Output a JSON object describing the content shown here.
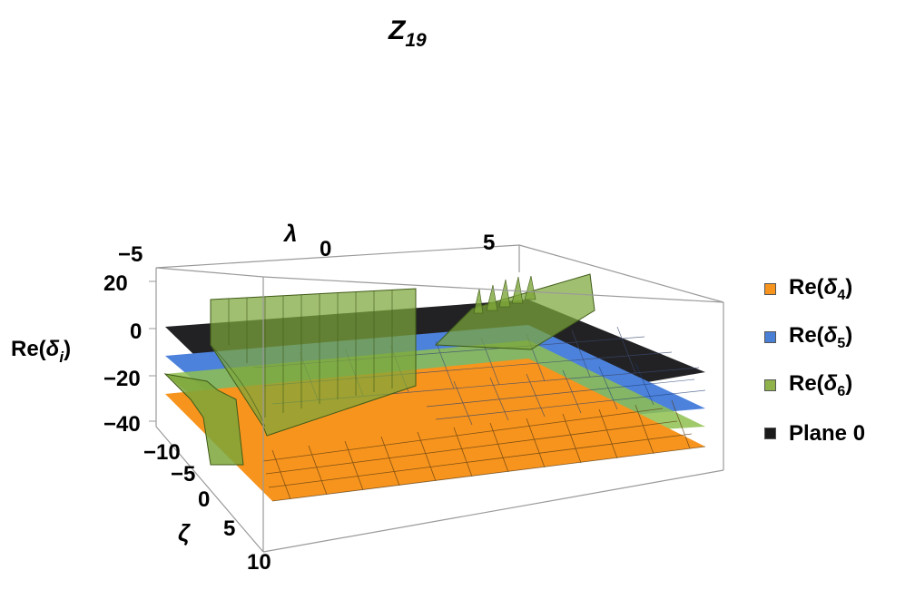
{
  "chart_data": {
    "type": "3d-surface",
    "title": "Z",
    "title_subscript": "19",
    "axes": {
      "lambda": {
        "label": "λ",
        "ticks": [
          "−5",
          "0",
          "5"
        ],
        "range": [
          -5,
          7
        ]
      },
      "zeta": {
        "label": "ζ",
        "ticks": [
          "−10",
          "−5",
          "0",
          "5",
          "10"
        ],
        "range": [
          -12,
          10
        ]
      },
      "z": {
        "label_prefix": "Re(",
        "label_symbol": "δ",
        "label_sub": "i",
        "label_suffix": ")",
        "ticks": [
          "20",
          "0",
          "−20",
          "−40"
        ],
        "range": [
          -45,
          25
        ]
      }
    },
    "series": [
      {
        "name_prefix": "Re(",
        "name_symbol": "δ",
        "name_sub": "4",
        "name_suffix": ")",
        "color": "#f7941d",
        "approx_level": -38
      },
      {
        "name_prefix": "Re(",
        "name_symbol": "δ",
        "name_sub": "5",
        "name_suffix": ")",
        "color": "#4a7fd6",
        "approx_level": -28
      },
      {
        "name_prefix": "Re(",
        "name_symbol": "δ",
        "name_sub": "6",
        "name_suffix": ")",
        "color": "#8fb34a",
        "approx_level": -30
      },
      {
        "name": "Plane 0",
        "color": "#1a1a1a",
        "approx_level": 0
      }
    ],
    "legend_position": "right"
  }
}
